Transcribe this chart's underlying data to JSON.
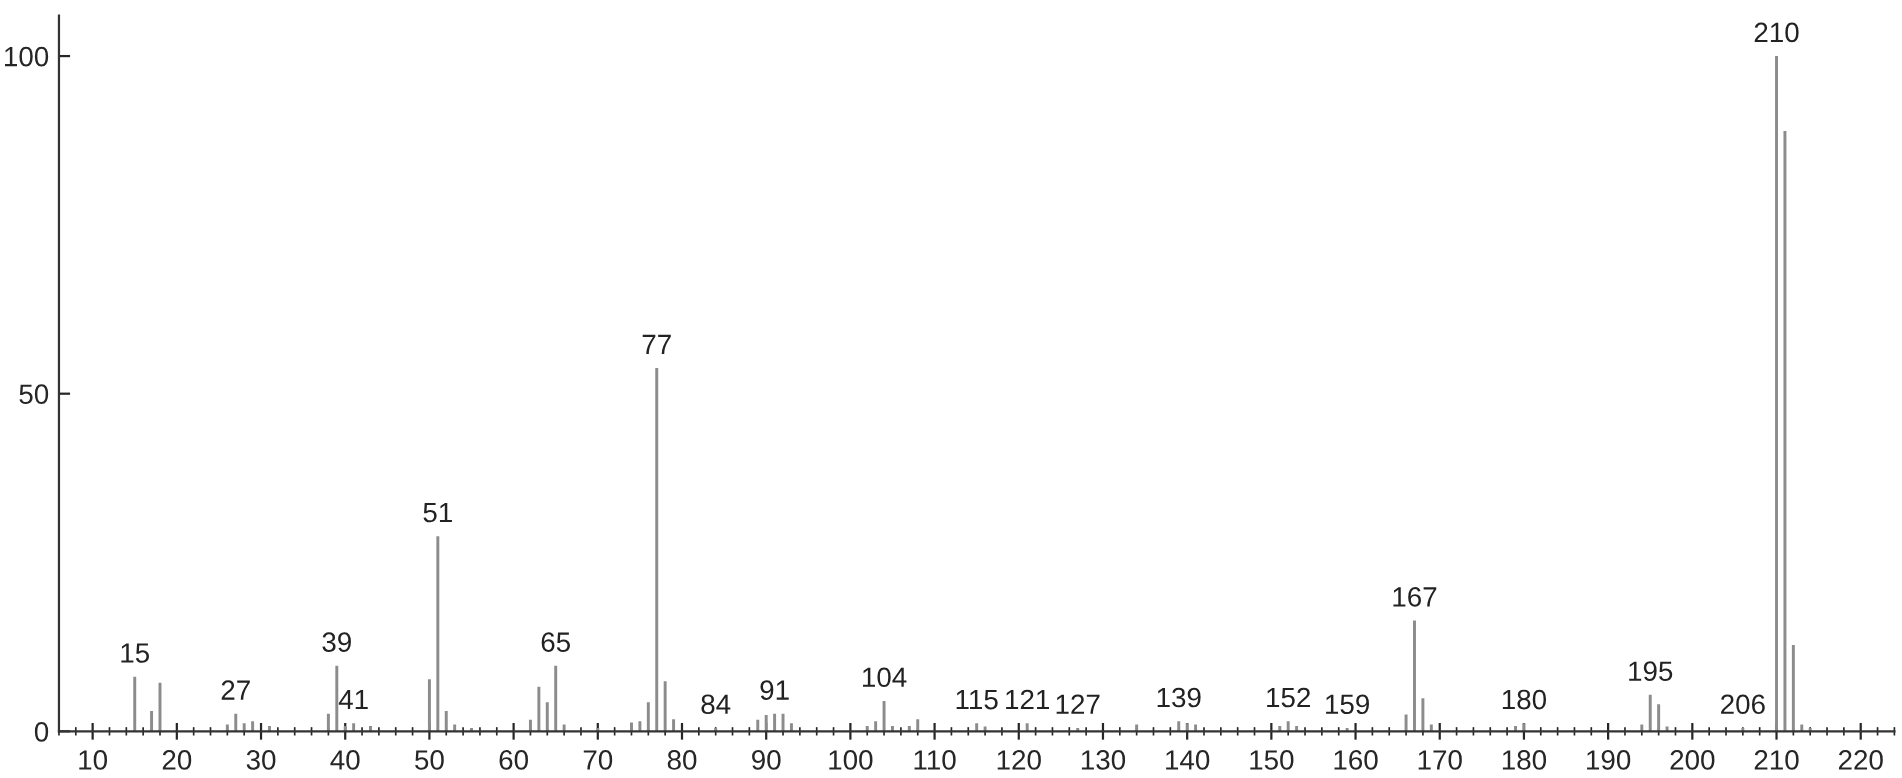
{
  "chart_data": {
    "type": "bar",
    "color": "#8c8c8c",
    "x": [
      15,
      17,
      18,
      26,
      27,
      28,
      29,
      31,
      38,
      39,
      40,
      41,
      43,
      50,
      51,
      52,
      53,
      55,
      62,
      63,
      64,
      65,
      66,
      70,
      74,
      75,
      76,
      77,
      78,
      79,
      84,
      89,
      90,
      91,
      92,
      93,
      102,
      103,
      104,
      105,
      107,
      108,
      115,
      116,
      121,
      127,
      134,
      139,
      140,
      141,
      151,
      152,
      153,
      159,
      166,
      167,
      168,
      169,
      179,
      180,
      194,
      195,
      196,
      197,
      206,
      210,
      211,
      212,
      213,
      214
    ],
    "values": [
      8.1,
      3,
      7.2,
      1,
      2.6,
      1.2,
      1.5,
      0.8,
      2.6,
      9.7,
      0.8,
      1.2,
      0.8,
      7.7,
      28.9,
      3,
      1,
      0.5,
      1.7,
      6.6,
      4.3,
      9.7,
      1,
      0.5,
      1.3,
      1.5,
      4.3,
      53.8,
      7.4,
      1.8,
      0.5,
      1.7,
      2.4,
      2.6,
      2.6,
      1.2,
      0.8,
      1.5,
      4.5,
      0.8,
      0.8,
      1.8,
      1.2,
      0.7,
      1.2,
      0.5,
      1,
      1.5,
      1.2,
      1,
      0.8,
      1.5,
      0.8,
      0.5,
      2.5,
      16.4,
      4.9,
      1,
      0.8,
      1.2,
      1,
      5.4,
      4,
      0.7,
      0.5,
      100,
      88.9,
      12.8,
      1,
      0.5
    ],
    "xlim": [
      6,
      224
    ],
    "xticks": [
      10,
      20,
      30,
      40,
      50,
      60,
      70,
      80,
      90,
      100,
      110,
      120,
      130,
      140,
      150,
      160,
      170,
      180,
      190,
      200,
      210,
      220
    ],
    "ylim": [
      0,
      106
    ],
    "yticks": [
      0,
      50,
      100
    ],
    "grid": false,
    "legend": false,
    "annotations": [
      {
        "text": "15",
        "x": 15,
        "y": 8.1
      },
      {
        "text": "27",
        "x": 27,
        "y": 2.6
      },
      {
        "text": "39",
        "x": 39,
        "y": 9.7
      },
      {
        "text": "41",
        "x": 41,
        "y": 1.2
      },
      {
        "text": "51",
        "x": 51,
        "y": 28.9
      },
      {
        "text": "65",
        "x": 65,
        "y": 9.7
      },
      {
        "text": "77",
        "x": 77,
        "y": 53.8
      },
      {
        "text": "84",
        "x": 84,
        "y": 0.5
      },
      {
        "text": "91",
        "x": 91,
        "y": 2.6
      },
      {
        "text": "104",
        "x": 104,
        "y": 4.5
      },
      {
        "text": "115",
        "x": 115,
        "y": 1.2
      },
      {
        "text": "121",
        "x": 121,
        "y": 1.2
      },
      {
        "text": "127",
        "x": 127,
        "y": 0.5
      },
      {
        "text": "139",
        "x": 139,
        "y": 1.5
      },
      {
        "text": "152",
        "x": 152,
        "y": 1.5
      },
      {
        "text": "159",
        "x": 159,
        "y": 0.5
      },
      {
        "text": "167",
        "x": 167,
        "y": 16.4
      },
      {
        "text": "180",
        "x": 180,
        "y": 1.2
      },
      {
        "text": "195",
        "x": 195,
        "y": 5.4
      },
      {
        "text": "206",
        "x": 206,
        "y": 0.5
      },
      {
        "text": "210",
        "x": 210,
        "y": 100
      }
    ]
  }
}
